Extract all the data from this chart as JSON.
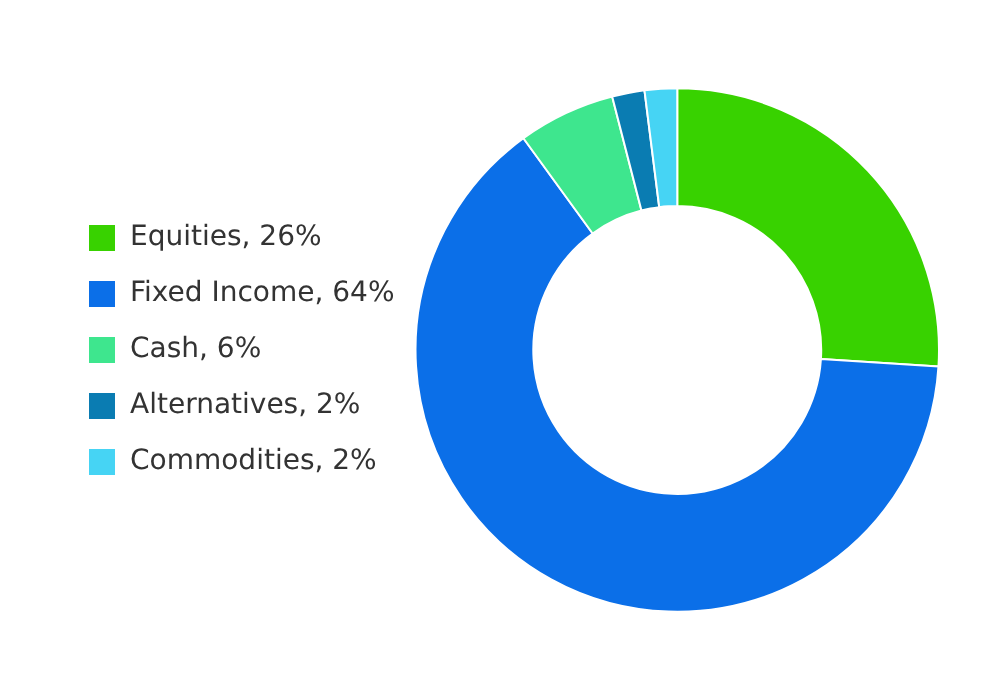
{
  "chart_data": {
    "type": "donut",
    "categories": [
      "Equities, 26%",
      "Fixed Income, 64%",
      "Cash, 6%",
      "Alternatives, 2%",
      "Commodities, 2%"
    ],
    "values": [
      26,
      64,
      6,
      2,
      2
    ],
    "colors": [
      "#38d200",
      "#0b6fe8",
      "#3ee68e",
      "#0a7cb2",
      "#46d4f4"
    ],
    "legend": "left"
  }
}
